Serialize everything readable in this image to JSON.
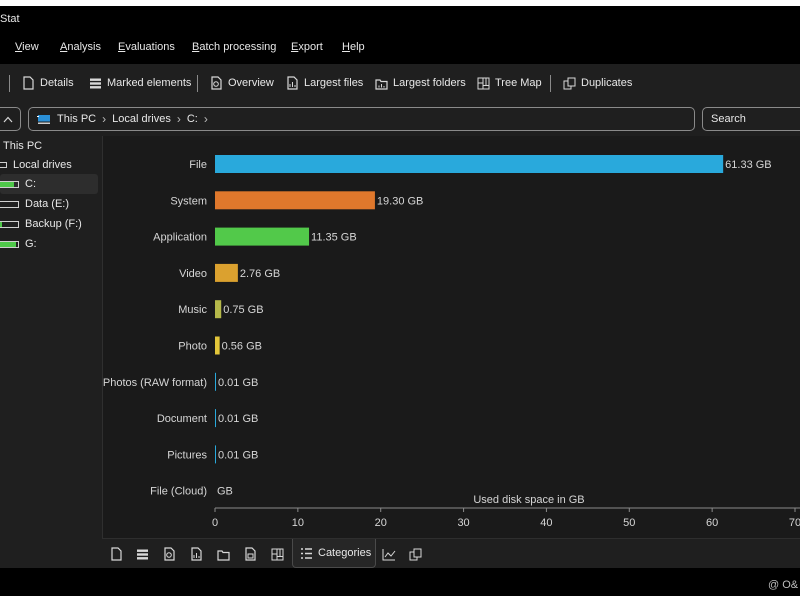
{
  "app": {
    "title": "Stat"
  },
  "menu": [
    {
      "label": "View",
      "u": "V",
      "rest": "iew",
      "name": "menu-view"
    },
    {
      "label": "Analysis",
      "u": "A",
      "rest": "nalysis",
      "name": "menu-analysis"
    },
    {
      "label": "Evaluations",
      "u": "E",
      "rest": "valuations",
      "name": "menu-evaluations"
    },
    {
      "label": "Batch processing",
      "u": "B",
      "rest": "atch processing",
      "name": "menu-batch-processing"
    },
    {
      "label": "Export",
      "u": "E",
      "rest": "xport",
      "name": "menu-export"
    },
    {
      "label": "Help",
      "u": "H",
      "rest": "elp",
      "name": "menu-help"
    }
  ],
  "toolbar": {
    "details": "Details",
    "marked_elements": "Marked elements",
    "overview": "Overview",
    "largest_files": "Largest files",
    "largest_folders": "Largest folders",
    "tree_map": "Tree Map",
    "duplicates": "Duplicates"
  },
  "address": {
    "crumbs": [
      "This PC",
      "Local drives",
      "C:"
    ],
    "search_placeholder": "Search"
  },
  "tree": {
    "this_pc": "This PC",
    "local_drives": "Local drives",
    "drives": [
      {
        "label": "C:",
        "fill": 0.8,
        "selected": true
      },
      {
        "label": "Data (E:)",
        "fill": 0.0,
        "selected": false
      },
      {
        "label": "Backup (F:)",
        "fill": 0.15,
        "selected": false
      },
      {
        "label": "G:",
        "fill": 0.9,
        "selected": false
      }
    ]
  },
  "tabs": {
    "active_label": "Categories"
  },
  "watermark": "O&",
  "colors": {
    "file": "#29a9dc",
    "system": "#e0782c",
    "application": "#52c94a",
    "video": "#dba12f",
    "music": "#b6b94a",
    "photo": "#e3c63a",
    "drive_fill": "#4fc84a"
  },
  "chart_data": {
    "type": "bar",
    "orientation": "horizontal",
    "categories": [
      "File",
      "System",
      "Application",
      "Video",
      "Music",
      "Photo",
      "Photos (RAW format)",
      "Document",
      "Pictures",
      "File (Cloud)"
    ],
    "values": [
      61.33,
      19.3,
      11.35,
      2.76,
      0.75,
      0.56,
      0.01,
      0.01,
      0.01,
      0.0
    ],
    "value_labels": [
      "61.33 GB",
      "19.30 GB",
      "11.35 GB",
      "2.76 GB",
      "0.75 GB",
      "0.56 GB",
      "0.01 GB",
      "0.01 GB",
      "0.01 GB",
      "GB"
    ],
    "bar_colors": [
      "#29a9dc",
      "#e0782c",
      "#52c94a",
      "#dba12f",
      "#b6b94a",
      "#e3c63a",
      "#29a9dc",
      "#29a9dc",
      "#29a9dc",
      "#29a9dc"
    ],
    "xlabel": "Used disk space in GB",
    "xticks": [
      0,
      10,
      20,
      30,
      40,
      50,
      60,
      70
    ],
    "xlim": [
      0,
      70
    ],
    "grid": false
  }
}
